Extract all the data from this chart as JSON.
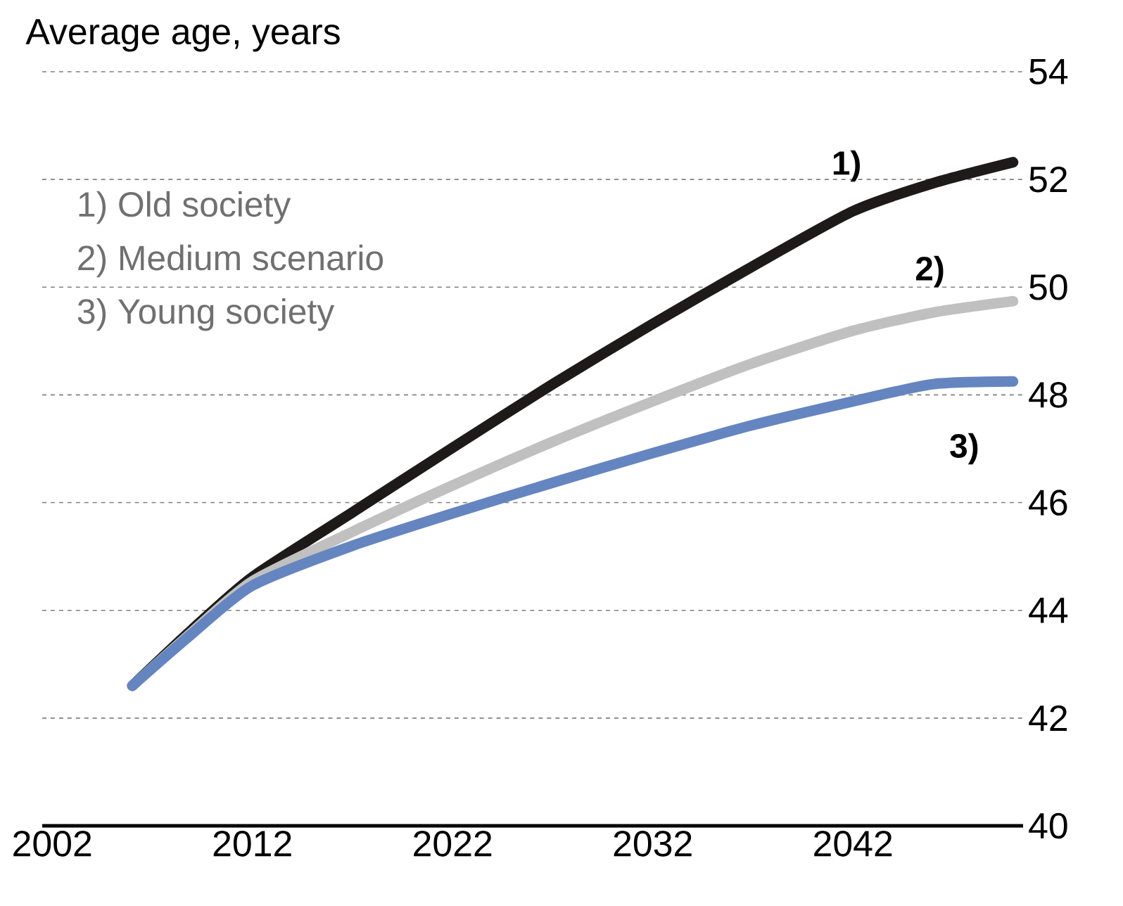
{
  "chart_data": {
    "type": "line",
    "ylabel": "Average age, years",
    "x": [
      2006,
      2009,
      2012,
      2017,
      2022,
      2027,
      2032,
      2037,
      2042,
      2046,
      2050
    ],
    "series": [
      {
        "color": "#1e1a19",
        "values": [
          42.6,
          43.65,
          44.62,
          45.82,
          47.02,
          48.2,
          49.32,
          50.39,
          51.41,
          51.93,
          52.32
        ]
      },
      {
        "color": "#c0c0c0",
        "values": [
          42.6,
          43.6,
          44.54,
          45.46,
          46.32,
          47.13,
          47.88,
          48.59,
          49.19,
          49.53,
          49.74
        ]
      },
      {
        "color": "#6585c0",
        "values": [
          42.6,
          43.57,
          44.46,
          45.2,
          45.8,
          46.37,
          46.92,
          47.44,
          47.88,
          48.2,
          48.25
        ]
      }
    ],
    "xlim": [
      2001.5,
      2050.5
    ],
    "xticks": [
      2002,
      2012,
      2022,
      2032,
      2042
    ],
    "ylim": [
      40,
      54
    ],
    "yticks": [
      40,
      42,
      44,
      46,
      48,
      50,
      52,
      54
    ],
    "grid": "y",
    "marker": "none",
    "line_style": "solid",
    "annotations": [
      "1) Old society",
      "2) Medium scenario",
      "3) Young society",
      "1)",
      "2)",
      "3)"
    ]
  }
}
